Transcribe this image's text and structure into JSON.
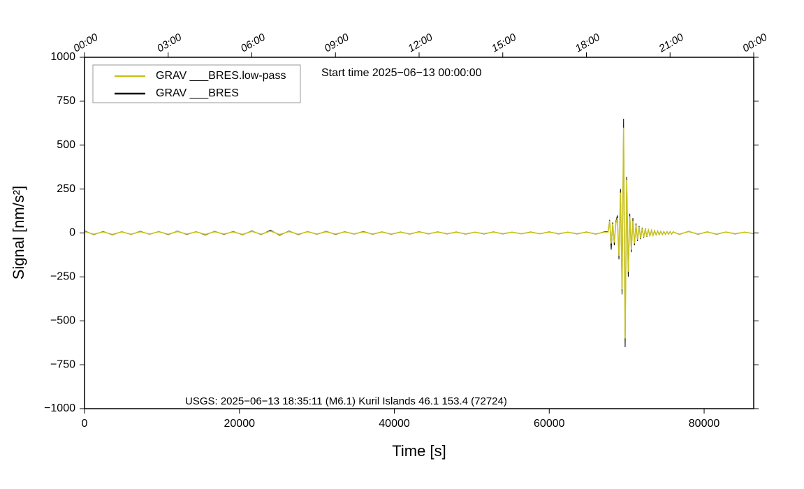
{
  "chart_data": {
    "type": "line",
    "annotations": [
      "Start time 2025−06−13 00:00:00",
      "USGS: 2025−06−13 18:35:11 (M6.1) Kuril Islands 46.1 153.4 (72724)"
    ],
    "xlabel": "Time [s]",
    "ylabel": "Signal [nm/s²]",
    "xlim": [
      0,
      86400
    ],
    "ylim": [
      -1000,
      1000
    ],
    "xticks": [
      0,
      20000,
      40000,
      60000,
      80000
    ],
    "x2ticks": [
      {
        "value": 0,
        "label": "00:00"
      },
      {
        "value": 10800,
        "label": "03:00"
      },
      {
        "value": 21600,
        "label": "06:00"
      },
      {
        "value": 32400,
        "label": "09:00"
      },
      {
        "value": 43200,
        "label": "12:00"
      },
      {
        "value": 54000,
        "label": "15:00"
      },
      {
        "value": 64800,
        "label": "18:00"
      },
      {
        "value": 75600,
        "label": "21:00"
      },
      {
        "value": 86400,
        "label": "00:00"
      }
    ],
    "yticks": [
      {
        "value": -1000,
        "label": "−1000"
      },
      {
        "value": -750,
        "label": "−750"
      },
      {
        "value": -500,
        "label": "−500"
      },
      {
        "value": -250,
        "label": "−250"
      },
      0,
      250,
      500,
      750,
      1000
    ],
    "legend": "upper left",
    "x": [
      0,
      1200,
      2400,
      3600,
      4800,
      6000,
      7200,
      8400,
      9600,
      10800,
      12000,
      13200,
      14400,
      15600,
      16800,
      18000,
      19200,
      20400,
      21600,
      22800,
      24000,
      25200,
      26400,
      27600,
      28800,
      30000,
      31200,
      32400,
      33600,
      34800,
      36000,
      37200,
      38400,
      39600,
      40800,
      42000,
      43200,
      44400,
      45600,
      46800,
      48000,
      49200,
      50400,
      51600,
      52800,
      54000,
      55200,
      56400,
      57600,
      58800,
      60000,
      61200,
      62400,
      63600,
      64800,
      66000,
      67200,
      67600,
      67800,
      68000,
      68200,
      68400,
      68600,
      68800,
      69000,
      69200,
      69400,
      69600,
      69800,
      70000,
      70200,
      70400,
      70600,
      70800,
      71000,
      71200,
      71400,
      71600,
      71800,
      72000,
      72200,
      72400,
      72600,
      72800,
      73000,
      73200,
      73400,
      73600,
      73800,
      74000,
      74200,
      74400,
      74600,
      74800,
      75000,
      75200,
      75400,
      75600,
      75800,
      76000,
      76800,
      78000,
      79200,
      80400,
      81600,
      82800,
      84000,
      85200,
      86400
    ],
    "series": [
      {
        "name": "GRAV ___BRES.low-pass",
        "color": "#c8c21c",
        "values": [
          8,
          -7,
          6,
          -8,
          6,
          -7,
          7,
          -6,
          7,
          -7,
          8,
          -6,
          6,
          -8,
          7,
          -6,
          6,
          -8,
          9,
          -7,
          11,
          -9,
          8,
          -7,
          7,
          -6,
          7,
          -6,
          6,
          -5,
          6,
          -6,
          5,
          -6,
          4,
          -5,
          6,
          -4,
          5,
          -4,
          4,
          -5,
          4,
          -4,
          5,
          -4,
          4,
          -4,
          4,
          -4,
          5,
          -4,
          4,
          -4,
          4,
          -5,
          5,
          5,
          70,
          -60,
          50,
          -55,
          55,
          85,
          -130,
          230,
          -320,
          600,
          -600,
          300,
          -220,
          95,
          -95,
          70,
          -60,
          45,
          -38,
          34,
          -30,
          26,
          -24,
          21,
          -19,
          17,
          -15,
          14,
          -13,
          12,
          -10,
          10,
          -9,
          8,
          -8,
          7,
          -7,
          6,
          -6,
          6,
          -5,
          5,
          -7,
          8,
          -6,
          5,
          -6,
          5,
          -4,
          4,
          -3
        ]
      },
      {
        "name": "GRAV ___BRES",
        "color": "#000000",
        "values": [
          12,
          -10,
          9,
          -11,
          8,
          -9,
          10,
          -8,
          9,
          -10,
          11,
          -9,
          8,
          -12,
          10,
          -9,
          9,
          -11,
          12,
          -10,
          16,
          -13,
          11,
          -10,
          9,
          -8,
          10,
          -9,
          8,
          -7,
          9,
          -8,
          7,
          -8,
          6,
          -7,
          8,
          -6,
          7,
          -6,
          6,
          -7,
          5,
          -6,
          7,
          -6,
          5,
          -5,
          6,
          -5,
          7,
          -6,
          5,
          -6,
          6,
          -7,
          8,
          8,
          75,
          -95,
          60,
          -70,
          65,
          100,
          -150,
          250,
          -350,
          650,
          -650,
          320,
          -250,
          110,
          -110,
          85,
          -70,
          55,
          -45,
          40,
          -35,
          30,
          -28,
          25,
          -22,
          20,
          -18,
          16,
          -15,
          14,
          -12,
          12,
          -11,
          10,
          -10,
          9,
          -9,
          8,
          -8,
          8,
          -7,
          7,
          -9,
          10,
          -8,
          7,
          -8,
          6,
          -6,
          5,
          -4
        ]
      }
    ]
  }
}
